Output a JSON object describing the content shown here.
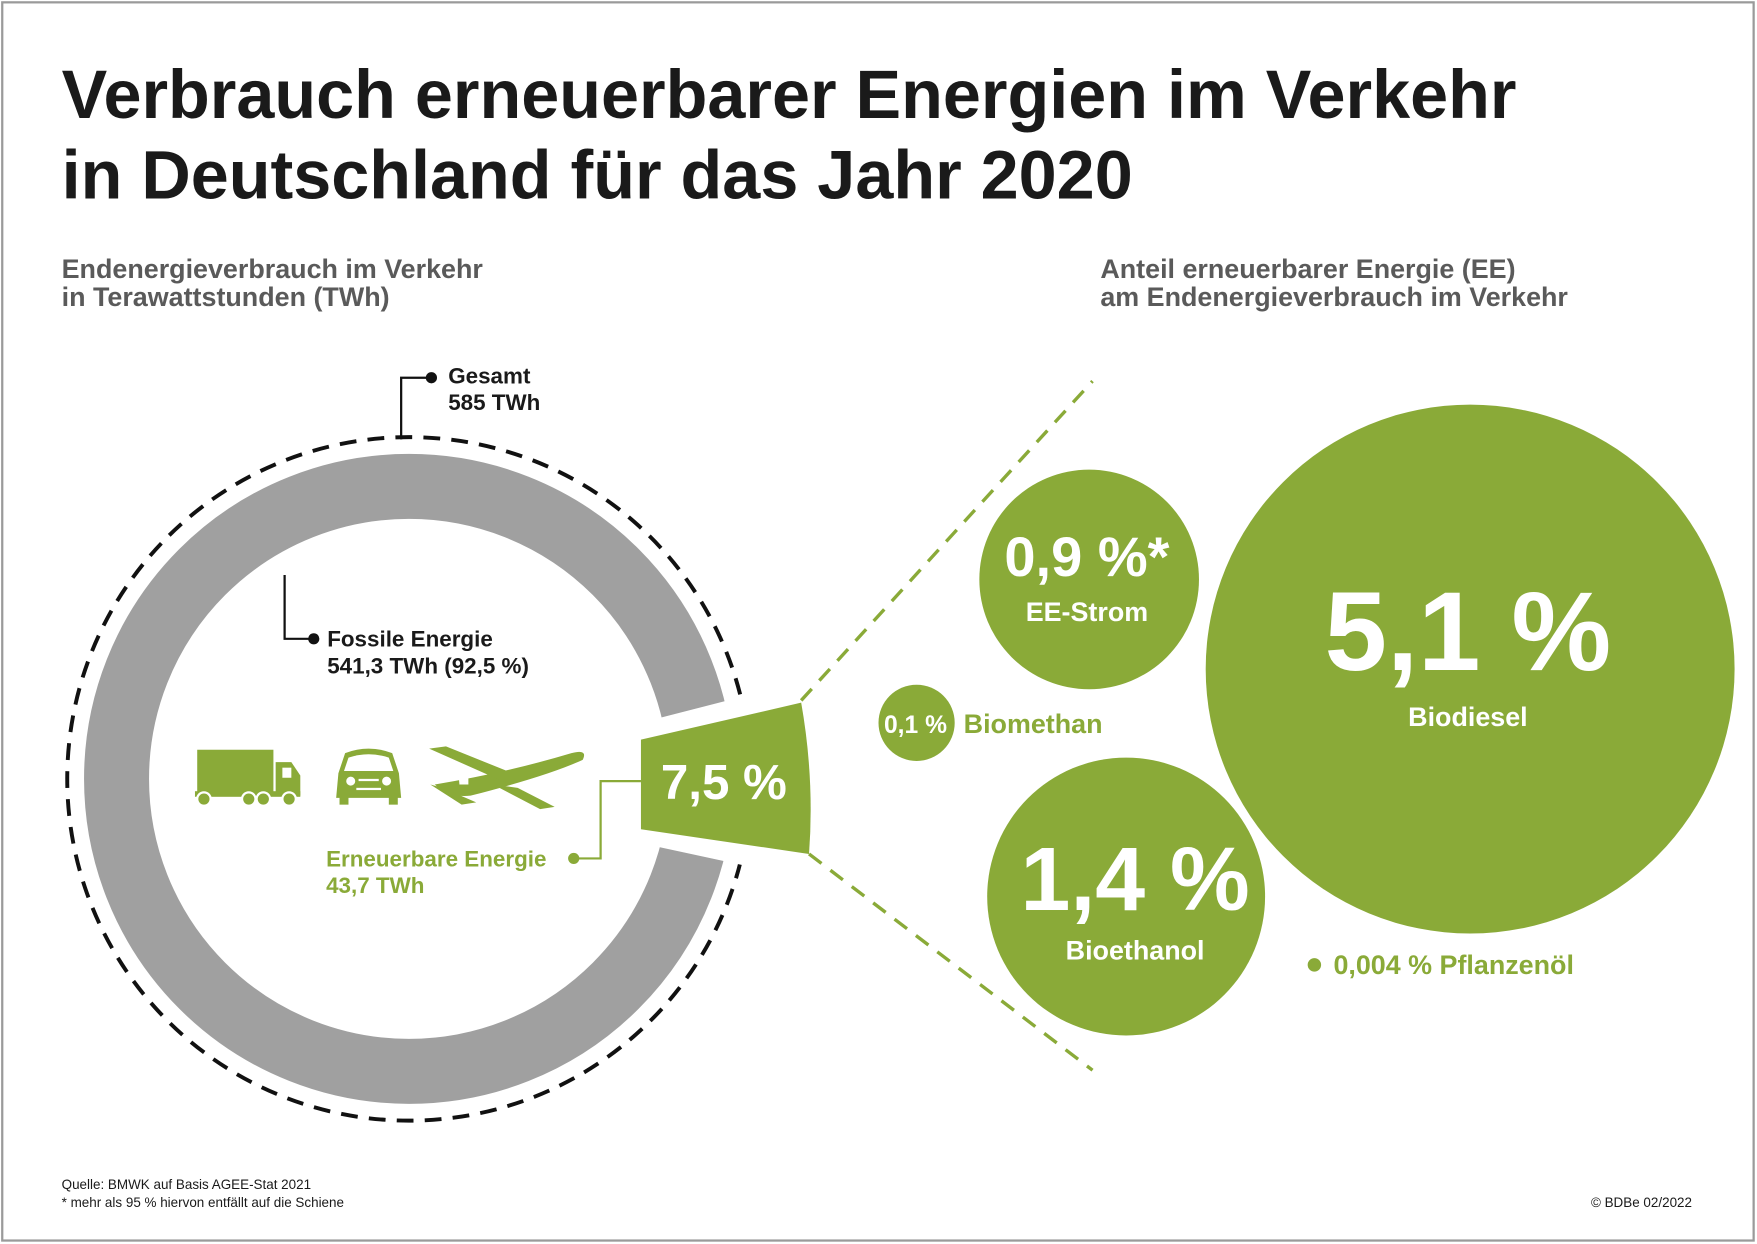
{
  "title": {
    "line1": "Verbrauch erneuerbarer Energien im Verkehr",
    "line2": "in Deutschland für das Jahr 2020"
  },
  "left_subtitle": {
    "line1": "Endenergieverbrauch im Verkehr",
    "line2": "in Terawattstunden (TWh)"
  },
  "right_subtitle": {
    "line1": "Anteil erneuerbarer Energie (EE)",
    "line2": "am Endenergieverbrauch im Verkehr"
  },
  "colors": {
    "green": "#8aaa38",
    "gray": "#a0a0a0",
    "text": "#1a1a1a"
  },
  "icons": [
    "truck-icon",
    "car-icon",
    "airplane-icon"
  ],
  "chart_data": [
    {
      "type": "pie",
      "subtype": "donut",
      "total": {
        "label": "Gesamt",
        "value_text": "585 TWh",
        "value": 585
      },
      "slices": [
        {
          "label": "Fossile Energie",
          "value": 541.3,
          "percent": 92.5,
          "value_text": "541,3 TWh (92,5 %)",
          "color": "#a0a0a0"
        },
        {
          "label": "Erneuerbare Energie",
          "value": 43.7,
          "percent": 7.5,
          "value_text": "43,7 TWh",
          "percent_text": "7,5 %",
          "color": "#8aaa38"
        }
      ]
    },
    {
      "type": "bubble",
      "items": [
        {
          "label": "EE-Strom",
          "percent": 0.9,
          "value_text": "0,9 %*"
        },
        {
          "label": "Biomethan",
          "percent": 0.1,
          "value_text": "0,1 %"
        },
        {
          "label": "Biodiesel",
          "percent": 5.1,
          "value_text": "5,1 %"
        },
        {
          "label": "Bioethanol",
          "percent": 1.4,
          "value_text": "1,4 %"
        },
        {
          "label": "Pflanzenöl",
          "percent": 0.004,
          "value_text": "0,004 %"
        }
      ]
    }
  ],
  "footer": {
    "source": "Quelle: BMWK auf Basis AGEE-Stat 2021",
    "note": "* mehr als 95 % hiervon entfällt auf die Schiene",
    "copyright": "© BDBe 02/2022"
  }
}
